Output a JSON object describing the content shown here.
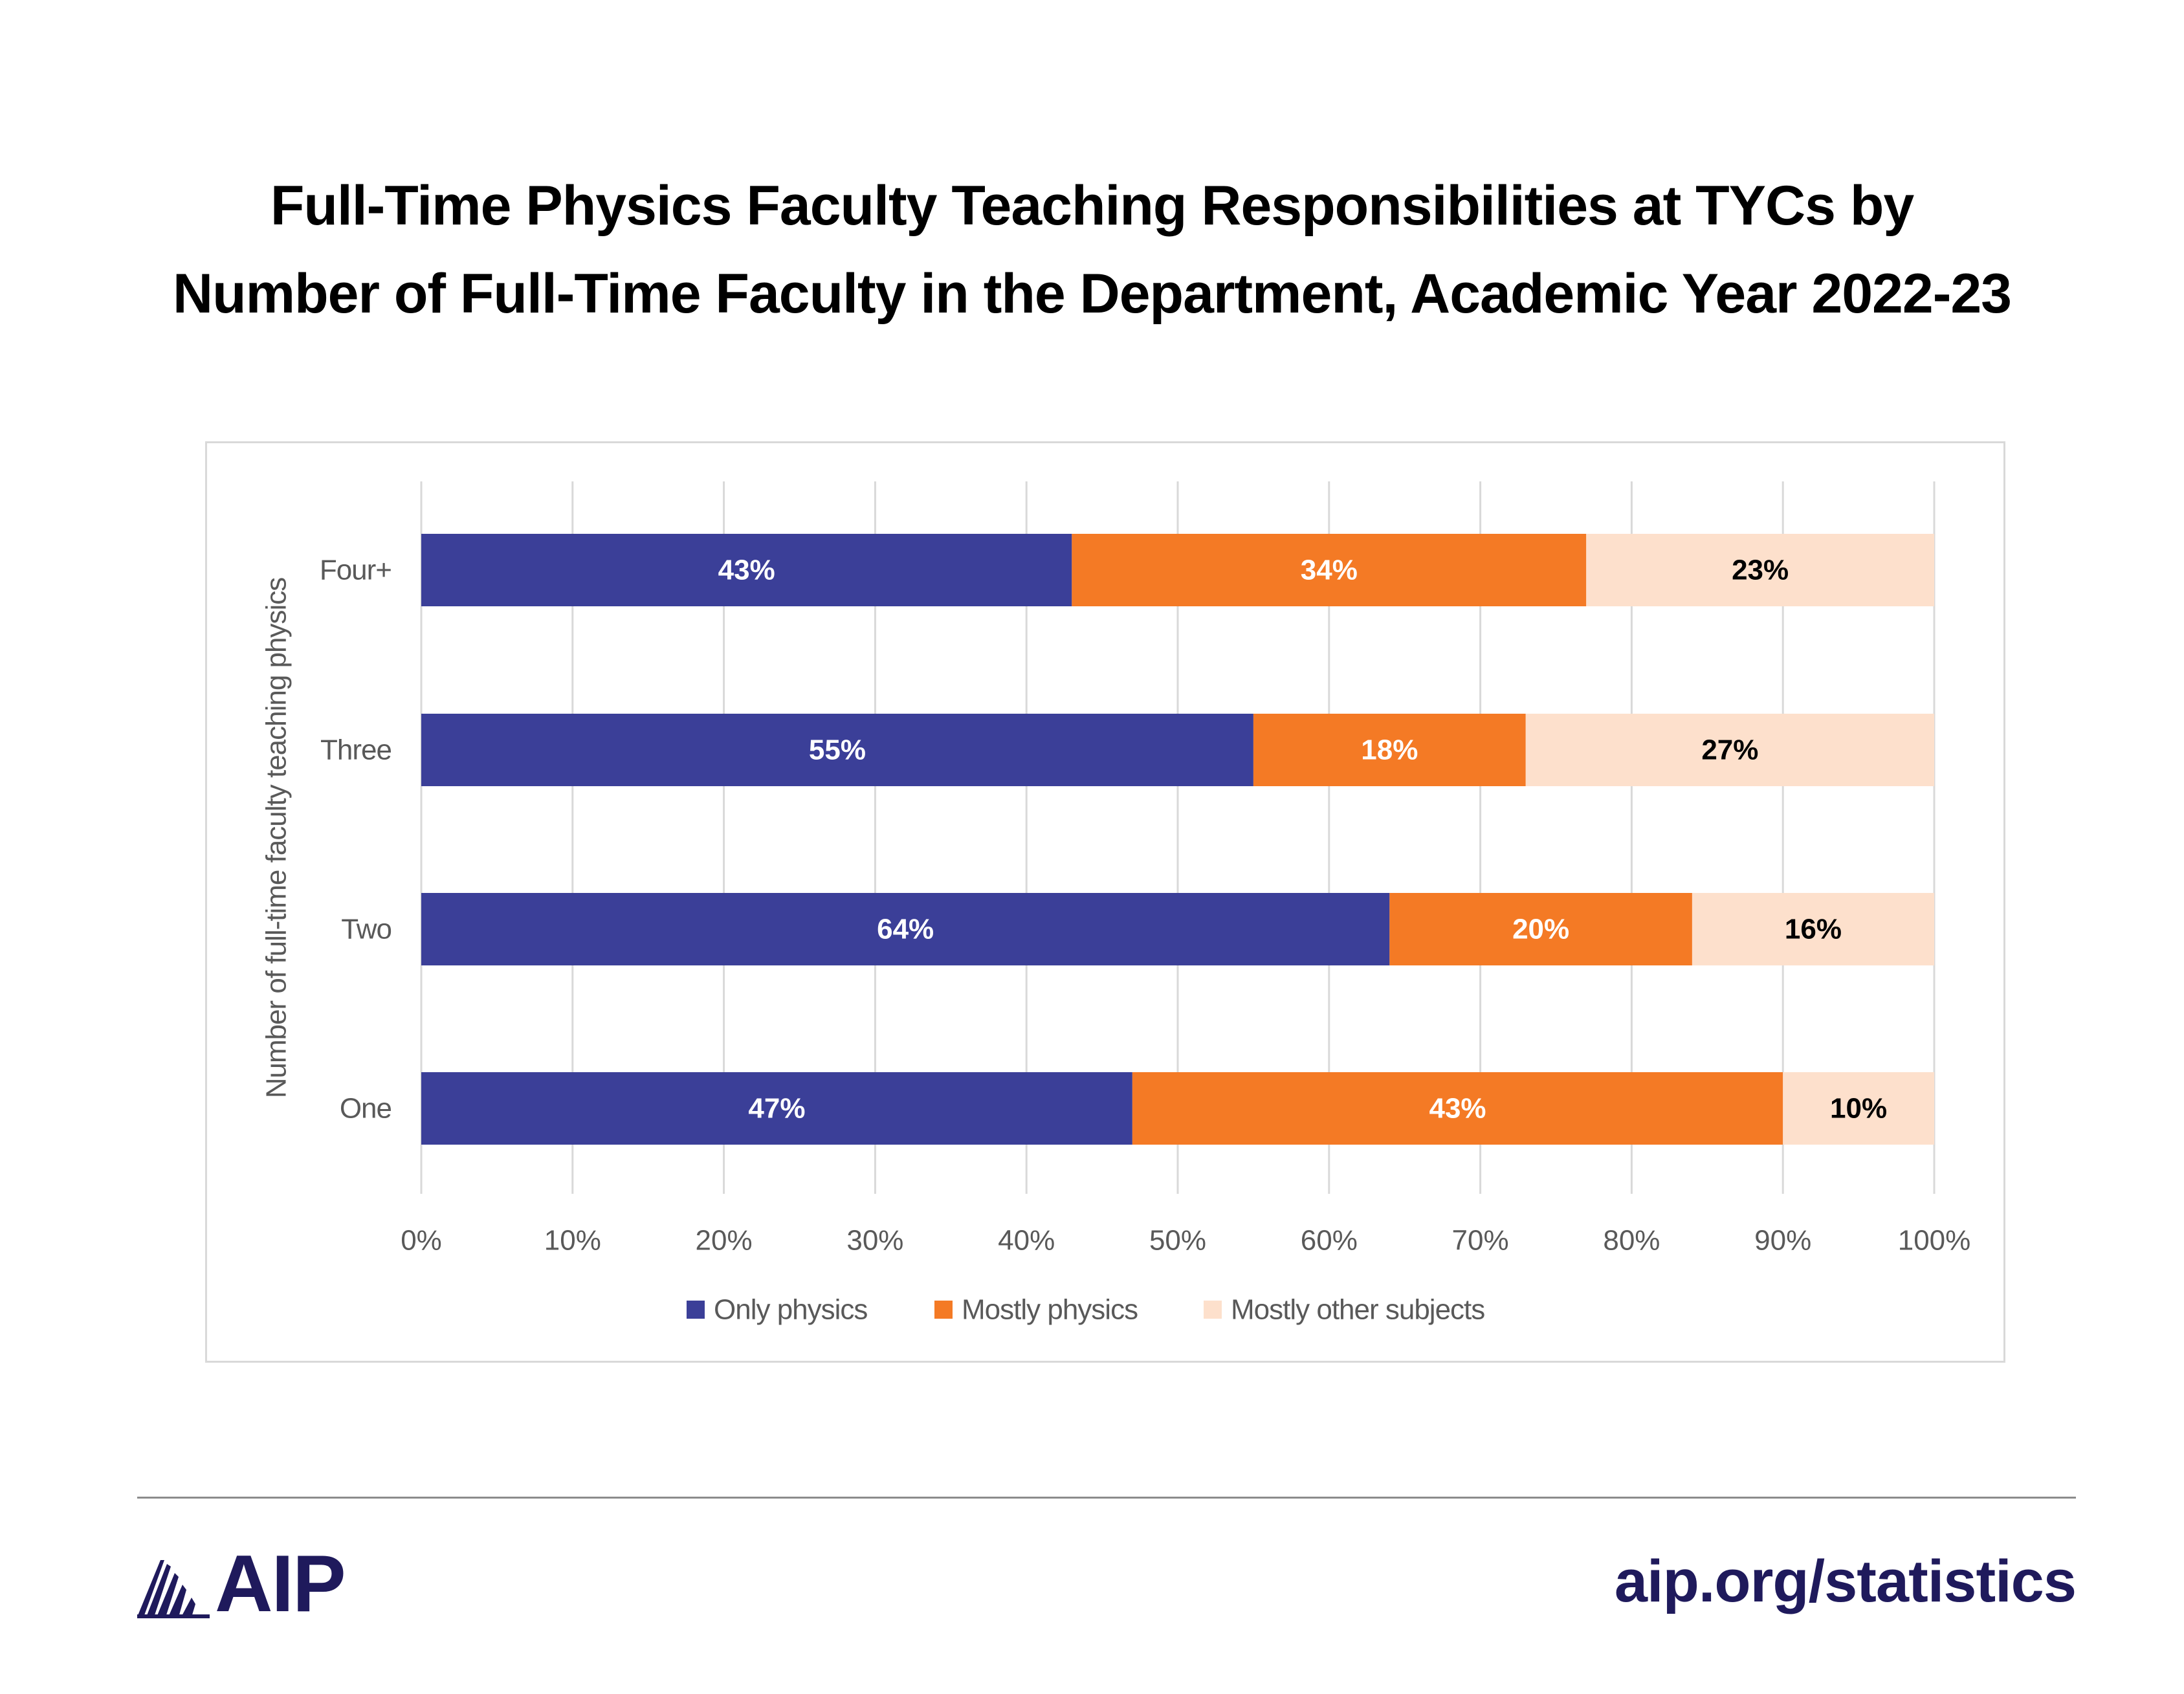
{
  "title_lines": [
    "Full-Time Physics Faculty Teaching Responsibilities at TYCs by",
    "Number of Full-Time Faculty in the Department, Academic Year 2022-23"
  ],
  "chart_data": {
    "type": "bar",
    "orientation": "horizontal",
    "stacked": true,
    "categories": [
      "Four+",
      "Three",
      "Two",
      "One"
    ],
    "series": [
      {
        "name": "Only physics",
        "color": "#3b3f98",
        "label_color": "#ffffff",
        "values": [
          43,
          55,
          64,
          47
        ]
      },
      {
        "name": "Mostly physics",
        "color": "#f47a25",
        "label_color": "#ffffff",
        "values": [
          34,
          18,
          20,
          43
        ]
      },
      {
        "name": "Mostly other subjects",
        "color": "#fde0cc",
        "label_color": "#000000",
        "values": [
          23,
          27,
          16,
          10
        ]
      }
    ],
    "value_format": "percent",
    "x_ticks": [
      0,
      10,
      20,
      30,
      40,
      50,
      60,
      70,
      80,
      90,
      100
    ],
    "x_tick_labels": [
      "0%",
      "10%",
      "20%",
      "30%",
      "40%",
      "50%",
      "60%",
      "70%",
      "80%",
      "90%",
      "100%"
    ],
    "xlim": [
      0,
      100
    ],
    "ylabel": "Number of full-time faculty teaching physics",
    "xlabel": "",
    "grid": true,
    "legend_position": "bottom"
  },
  "footer": {
    "logo_text": "AIP",
    "logo_color": "#1f1a5c",
    "link_text": "aip.org/statistics"
  }
}
